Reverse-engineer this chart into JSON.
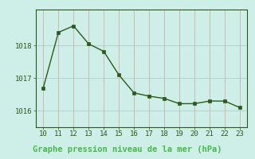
{
  "x": [
    10,
    11,
    12,
    13,
    14,
    15,
    16,
    17,
    18,
    19,
    20,
    21,
    22,
    23
  ],
  "y": [
    1016.7,
    1018.4,
    1018.6,
    1018.05,
    1017.82,
    1017.1,
    1016.55,
    1016.45,
    1016.38,
    1016.22,
    1016.22,
    1016.3,
    1016.3,
    1016.1
  ],
  "line_color": "#2d5a1b",
  "marker_color": "#2d5a1b",
  "bg_color": "#ceeee8",
  "plot_bg_color": "#ceeee8",
  "grid_color": "#b0c8c0",
  "grid_color_red": "#d4a0a0",
  "title": "Graphe pression niveau de la mer (hPa)",
  "title_color": "#1a5c1a",
  "title_bg_color": "#1a5c1a",
  "title_text_color": "#2d8c2d",
  "title_fontsize": 7.5,
  "xlim": [
    9.5,
    23.5
  ],
  "ylim": [
    1015.5,
    1019.1
  ],
  "yticks": [
    1016,
    1017,
    1018
  ],
  "xticks": [
    10,
    11,
    12,
    13,
    14,
    15,
    16,
    17,
    18,
    19,
    20,
    21,
    22,
    23
  ],
  "tick_fontsize": 6.5,
  "tick_color": "#2d5a1b",
  "line_width": 1.0,
  "marker_size": 2.5,
  "marker_style": "s",
  "spine_color": "#2d5a1b"
}
